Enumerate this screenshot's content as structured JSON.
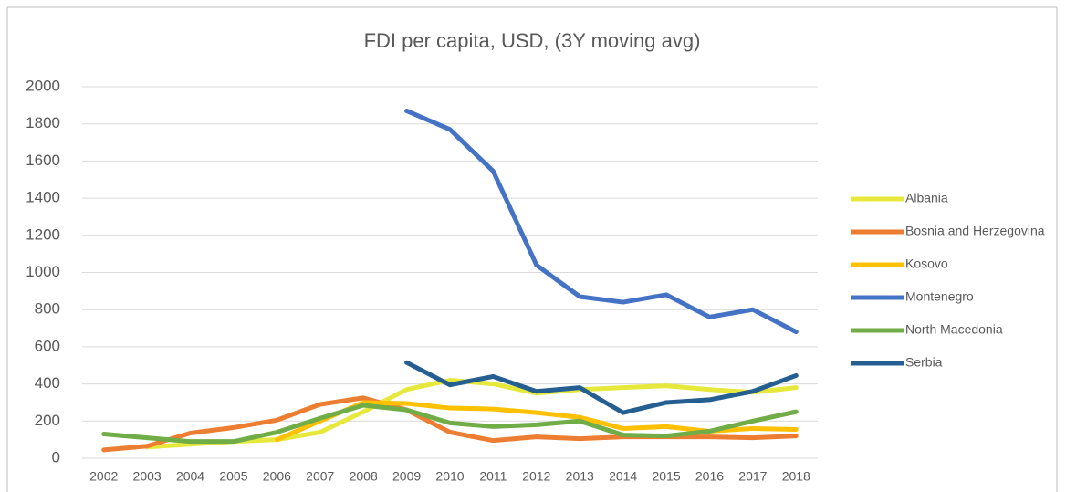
{
  "chart_data": {
    "type": "line",
    "title": "FDI per capita, USD, (3Y moving avg)",
    "categories": [
      "2002",
      "2003",
      "2004",
      "2005",
      "2006",
      "2007",
      "2008",
      "2009",
      "2010",
      "2011",
      "2012",
      "2013",
      "2014",
      "2015",
      "2016",
      "2017",
      "2018"
    ],
    "ylim": [
      0,
      2000
    ],
    "yticks": [
      0,
      200,
      400,
      600,
      800,
      1000,
      1200,
      1400,
      1600,
      1800,
      2000
    ],
    "grid": true,
    "legend": "right",
    "series": [
      {
        "name": "Albania",
        "color": "#e6e83c",
        "values": [
          null,
          60,
          75,
          90,
          100,
          140,
          250,
          370,
          420,
          400,
          350,
          370,
          380,
          390,
          370,
          355,
          380
        ]
      },
      {
        "name": "Bosnia and Herzegovina",
        "color": "#ed7d31",
        "values": [
          45,
          65,
          135,
          165,
          205,
          290,
          325,
          260,
          140,
          95,
          115,
          105,
          115,
          115,
          115,
          110,
          120
        ]
      },
      {
        "name": "Kosovo",
        "color": "#ffc000",
        "values": [
          null,
          null,
          null,
          null,
          100,
          200,
          300,
          295,
          270,
          265,
          245,
          220,
          160,
          170,
          145,
          160,
          155
        ]
      },
      {
        "name": "Montenegro",
        "color": "#4472c4",
        "values": [
          null,
          null,
          null,
          null,
          null,
          null,
          null,
          1870,
          1770,
          1545,
          1040,
          870,
          840,
          880,
          760,
          800,
          680
        ]
      },
      {
        "name": "North Macedonia",
        "color": "#70ad47",
        "values": [
          130,
          110,
          90,
          90,
          140,
          215,
          285,
          260,
          190,
          170,
          180,
          200,
          125,
          120,
          145,
          200,
          250
        ]
      },
      {
        "name": "Serbia",
        "color": "#255e91",
        "values": [
          null,
          null,
          null,
          null,
          null,
          null,
          null,
          515,
          395,
          440,
          360,
          380,
          245,
          300,
          315,
          360,
          445
        ]
      }
    ]
  }
}
